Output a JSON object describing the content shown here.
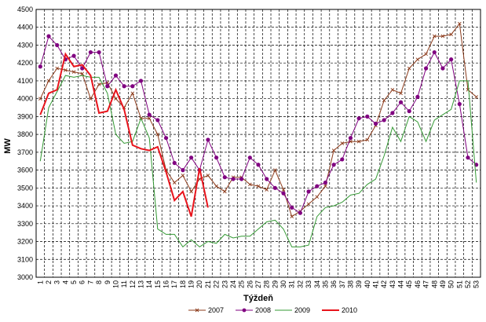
{
  "chart_data": {
    "type": "line",
    "xlabel": "Týždeň",
    "ylabel": "MW",
    "ylim": [
      3000,
      4500
    ],
    "ystep": 100,
    "grid": true,
    "legend_position": "bottom",
    "x": [
      1,
      2,
      3,
      4,
      5,
      6,
      7,
      8,
      9,
      10,
      11,
      12,
      13,
      14,
      15,
      16,
      17,
      18,
      19,
      20,
      21,
      22,
      23,
      24,
      25,
      26,
      27,
      28,
      29,
      30,
      31,
      32,
      33,
      34,
      35,
      36,
      37,
      38,
      39,
      40,
      41,
      42,
      43,
      44,
      45,
      46,
      47,
      48,
      49,
      50,
      51,
      52,
      53
    ],
    "series": [
      {
        "name": "2007",
        "color": "#8b3a1a",
        "marker": "x",
        "width": 1,
        "values": [
          4000,
          4100,
          4170,
          4160,
          4150,
          4140,
          4000,
          4080,
          4090,
          4000,
          3950,
          4030,
          3890,
          3890,
          3800,
          3600,
          3530,
          3570,
          3480,
          3550,
          3570,
          3510,
          3480,
          3560,
          3560,
          3520,
          3510,
          3490,
          3600,
          3490,
          3340,
          3370,
          3410,
          3450,
          3510,
          3710,
          3750,
          3760,
          3760,
          3770,
          3850,
          3990,
          4050,
          4030,
          4170,
          4220,
          4250,
          4350,
          4350,
          4360,
          4420,
          4050,
          4010
        ]
      },
      {
        "name": "2008",
        "color": "#800080",
        "marker": "dot",
        "width": 1,
        "values": [
          4180,
          4350,
          4300,
          4220,
          4240,
          4170,
          4260,
          4260,
          4070,
          4130,
          4070,
          4070,
          4100,
          3910,
          3880,
          3780,
          3640,
          3600,
          3670,
          3600,
          3770,
          3670,
          3560,
          3550,
          3550,
          3670,
          3630,
          3550,
          3500,
          3470,
          3390,
          3360,
          3480,
          3510,
          3530,
          3630,
          3660,
          3780,
          3890,
          3900,
          3860,
          3880,
          3920,
          3980,
          3930,
          4010,
          4170,
          4260,
          4170,
          4220,
          3970,
          3670,
          3630
        ]
      },
      {
        "name": "2009",
        "color": "#339933",
        "marker": "none",
        "width": 1,
        "values": [
          3650,
          3950,
          4040,
          4130,
          4120,
          4130,
          4120,
          4120,
          4030,
          3800,
          3750,
          3760,
          3890,
          3780,
          3270,
          3240,
          3240,
          3170,
          3210,
          3170,
          3200,
          3190,
          3240,
          3220,
          3230,
          3230,
          3270,
          3310,
          3320,
          3270,
          3170,
          3170,
          3180,
          3340,
          3390,
          3400,
          3420,
          3460,
          3470,
          3520,
          3550,
          3680,
          3840,
          3760,
          3900,
          3870,
          3760,
          3880,
          3910,
          3940,
          4100,
          4100,
          3530
        ]
      },
      {
        "name": "2010",
        "color": "#e8141c",
        "marker": "none",
        "width": 2,
        "values": [
          3910,
          4030,
          4050,
          4250,
          4180,
          4190,
          4130,
          3920,
          3930,
          4050,
          3940,
          3740,
          3720,
          3710,
          3730,
          3590,
          3430,
          3480,
          3340,
          3610,
          3390,
          null,
          null,
          null,
          null,
          null,
          null,
          null,
          null,
          null,
          null,
          null,
          null,
          null,
          null,
          null,
          null,
          null,
          null,
          null,
          null,
          null,
          null,
          null,
          null,
          null,
          null,
          null,
          null,
          null,
          null,
          null,
          null
        ]
      }
    ]
  }
}
